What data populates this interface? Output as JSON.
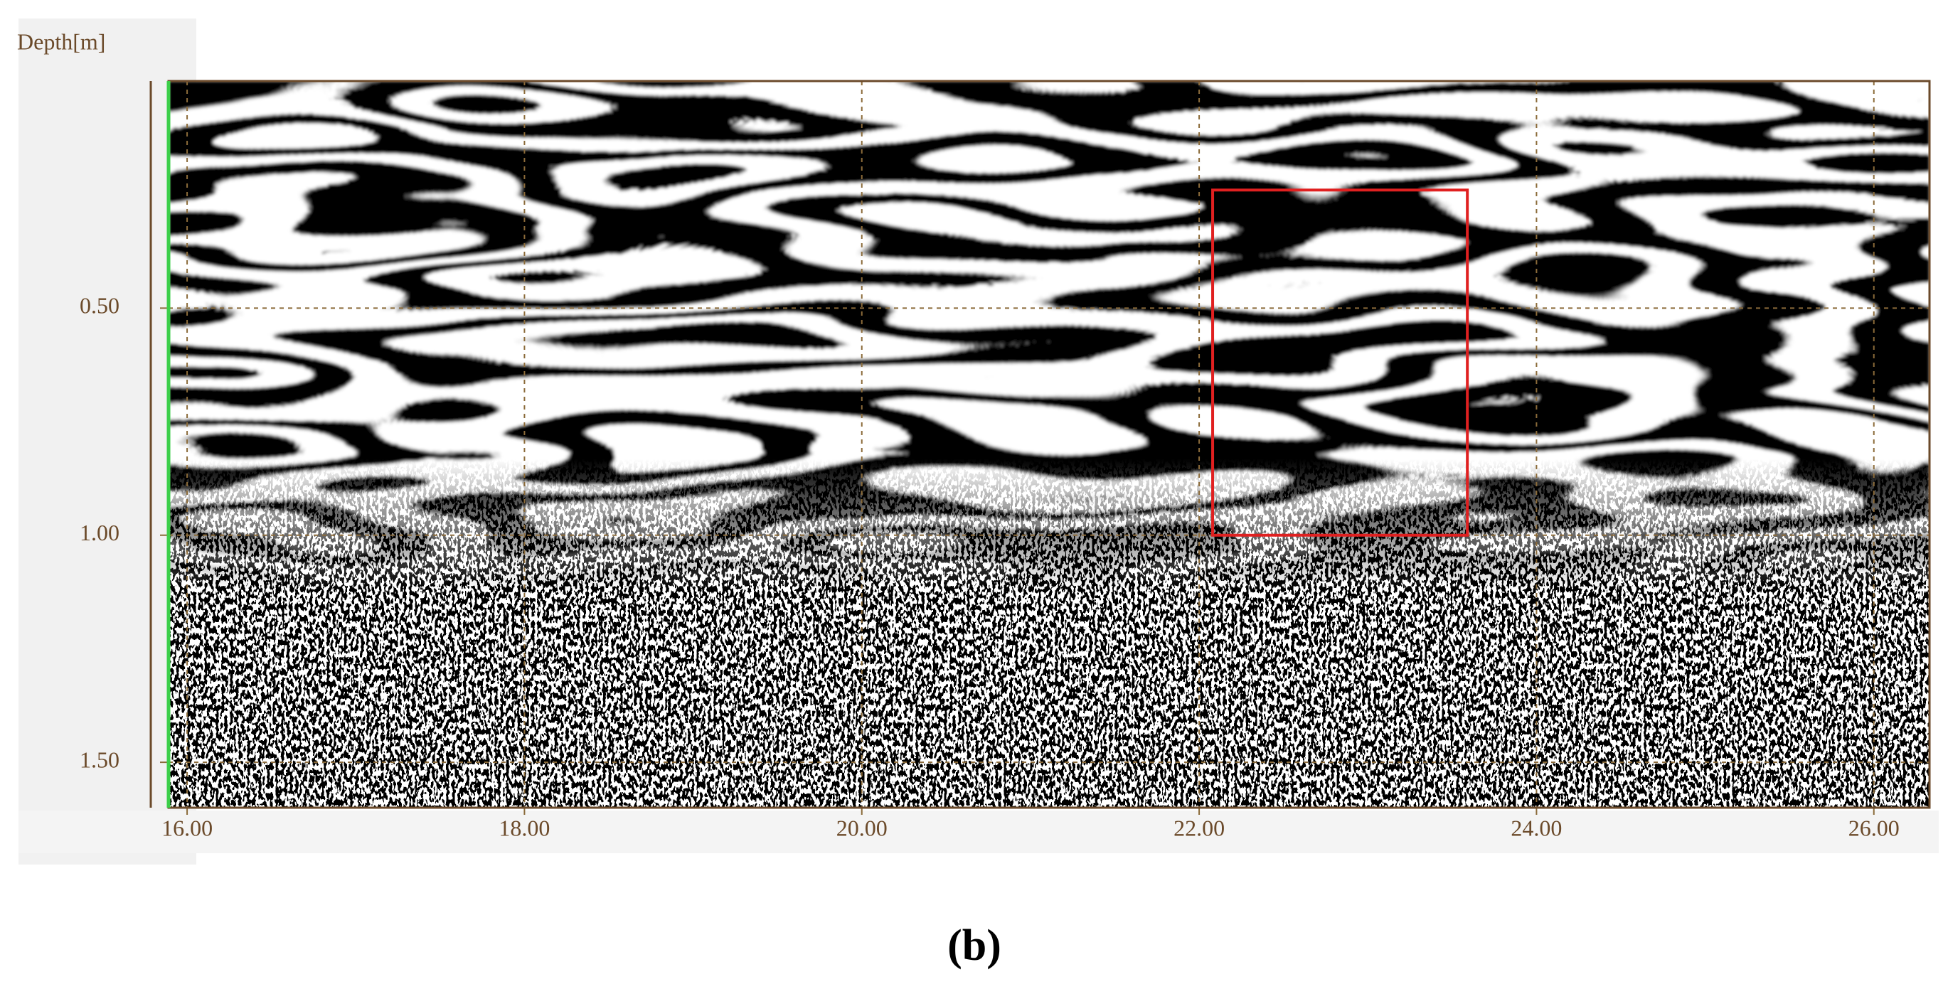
{
  "chart_data": {
    "type": "radargram",
    "ylabel": "Depth[m]",
    "caption": "(b)",
    "xlim": [
      15.89,
      26.33
    ],
    "ylim": [
      0,
      1.6
    ],
    "xticks": [
      {
        "value": 16,
        "label": "16.00"
      },
      {
        "value": 18,
        "label": "18.00"
      },
      {
        "value": 20,
        "label": "20.00"
      },
      {
        "value": 22,
        "label": "22.00"
      },
      {
        "value": 24,
        "label": "24.00"
      },
      {
        "value": 26,
        "label": "26.00"
      }
    ],
    "yticks": [
      {
        "value": 0.5,
        "label": "0.50"
      },
      {
        "value": 1.0,
        "label": "1.00"
      },
      {
        "value": 1.5,
        "label": "1.50"
      }
    ],
    "grid": true,
    "grid_color": "#8b6b3a",
    "highlight_box": {
      "x": [
        22.08,
        23.59
      ],
      "y": [
        0.24,
        1.0
      ],
      "color": "#e02020"
    }
  }
}
